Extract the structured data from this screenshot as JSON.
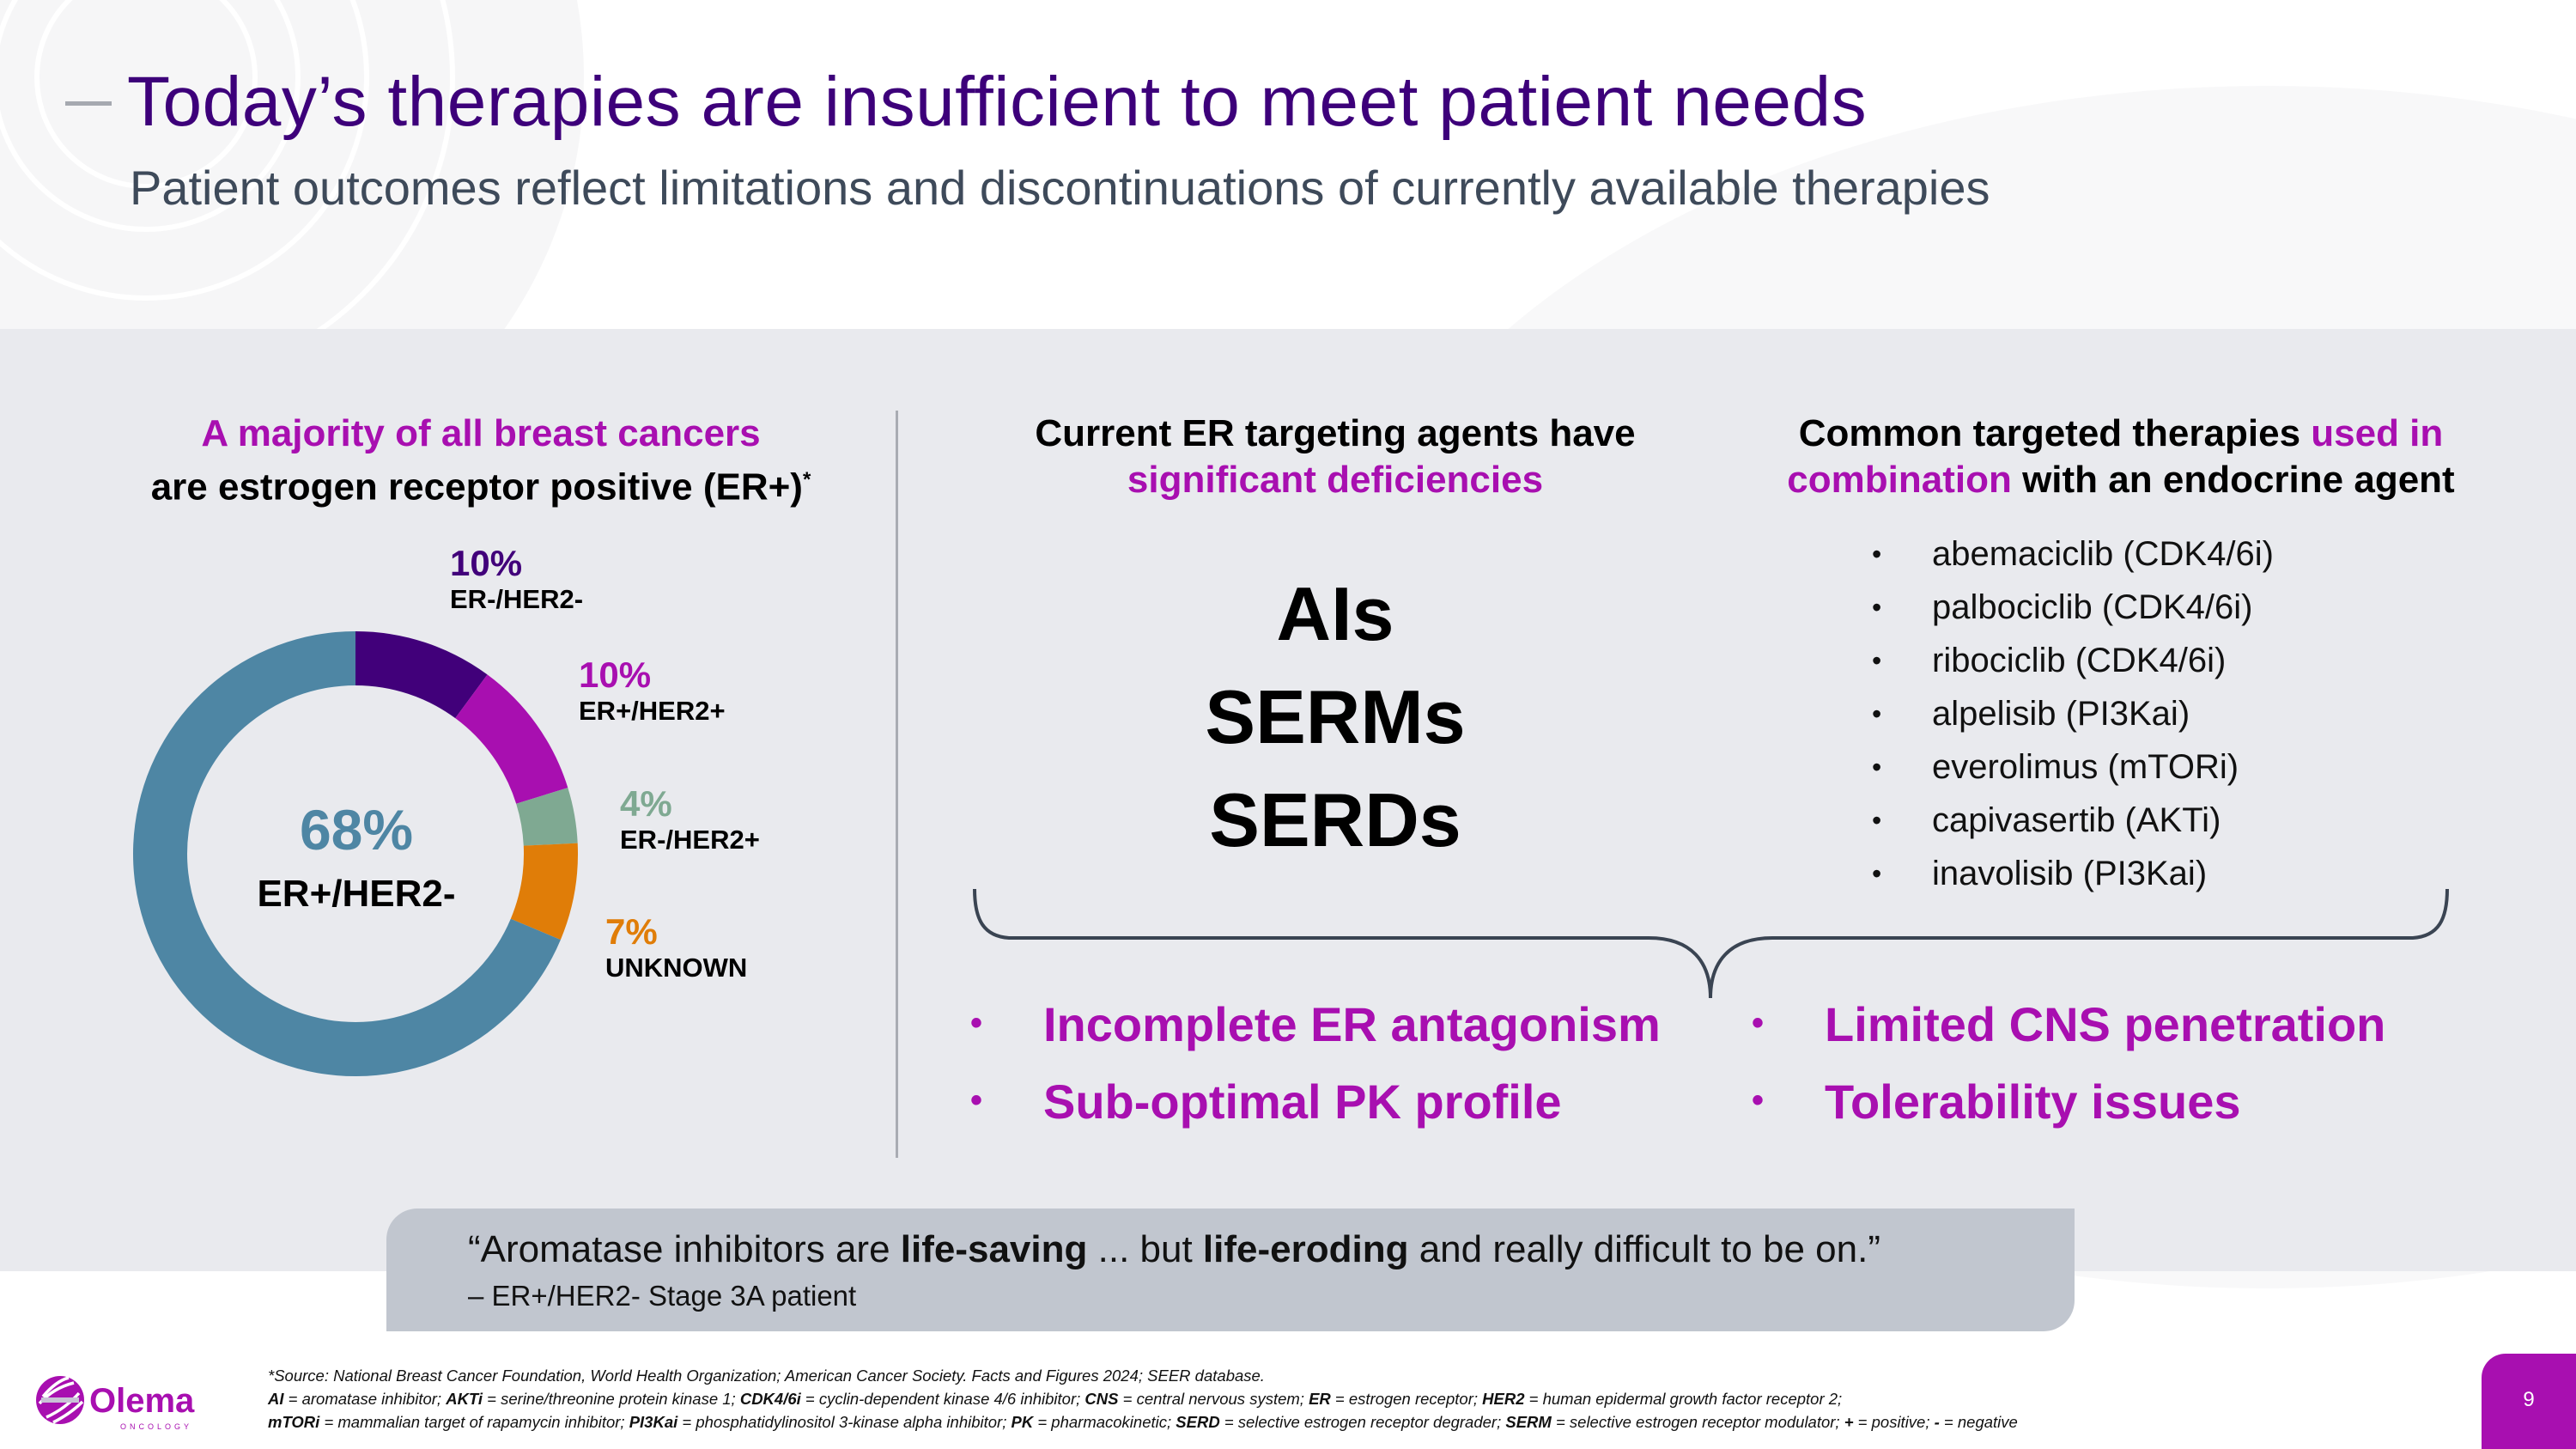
{
  "header": {
    "title": "Today’s therapies are insufficient to meet patient needs",
    "subtitle": "Patient outcomes reflect limitations and discontinuations of currently available therapies"
  },
  "left": {
    "heading_highlight": "A majority of all breast cancers",
    "heading_rest": "are estrogen receptor positive (ER+)",
    "heading_footnote_mark": "*",
    "center_pct": "68%",
    "center_label": "ER+/HER2-"
  },
  "chart_data": {
    "type": "pie",
    "variant": "donut",
    "title": "A majority of all breast cancers are estrogen receptor positive (ER+)*",
    "categories": [
      "ER-/HER2-",
      "ER+/HER2+",
      "ER-/HER2+",
      "UNKNOWN",
      "ER+/HER2-"
    ],
    "values": [
      10,
      10,
      4,
      7,
      68
    ],
    "labels": [
      "10%",
      "10%",
      "4%",
      "7%",
      "68%"
    ],
    "colors": [
      "#41007a",
      "#a80fb0",
      "#7fa992",
      "#e07d08",
      "#4e86a4"
    ],
    "start_angle_deg": 0,
    "direction": "clockwise",
    "center_annotation": "68% ER+/HER2-"
  },
  "middle": {
    "heading_line1": "Current ER targeting agents have",
    "heading_line2": "significant deficiencies",
    "agents": [
      "AIs",
      "SERMs",
      "SERDs"
    ]
  },
  "right": {
    "heading_part1": "Common targeted therapies ",
    "heading_highlight1": "used in",
    "heading_highlight2": "combination",
    "heading_part2": " with an endocrine agent",
    "bullet_glyph": "•",
    "therapies": [
      "abemaciclib (CDK4/6i)",
      "palbociclib (CDK4/6i)",
      "ribociclib (CDK4/6i)",
      "alpelisib (PI3Kai)",
      "everolimus (mTORi)",
      "capivasertib (AKTi)",
      "inavolisib (PI3Kai)"
    ]
  },
  "deficiencies": {
    "bullet_glyph": "•",
    "items": [
      "Incomplete ER antagonism",
      "Sub-optimal PK profile",
      "Limited CNS penetration",
      "Tolerability issues"
    ]
  },
  "quote": {
    "open": "“Aromatase inhibitors are ",
    "bold1": "life-saving",
    "mid": " ... but ",
    "bold2": "life-eroding",
    "close": " and really difficult to be on.”",
    "attribution": "– ER+/HER2- Stage 3A patient"
  },
  "footer": {
    "source": "*Source: National Breast Cancer Foundation, World Health Organization; American Cancer Society. Facts and Figures 2024; SEER database.",
    "abbrev_line1": [
      {
        "term": "AI",
        "def": " = aromatase inhibitor; "
      },
      {
        "term": "AKTi",
        "def": " = serine/threonine protein kinase 1; "
      },
      {
        "term": "CDK4/6i",
        "def": " = cyclin-dependent kinase 4/6 inhibitor; "
      },
      {
        "term": "CNS",
        "def": " = central nervous system; "
      },
      {
        "term": "ER",
        "def": " = estrogen receptor; "
      },
      {
        "term": "HER2",
        "def": " = human epidermal growth factor receptor 2;"
      }
    ],
    "abbrev_line2": [
      {
        "term": "mTORi",
        "def": " = mammalian target of rapamycin inhibitor; "
      },
      {
        "term": "PI3Kai",
        "def": " = phosphatidylinositol 3-kinase alpha inhibitor; "
      },
      {
        "term": "PK",
        "def": " = pharmacokinetic; "
      },
      {
        "term": "SERD",
        "def": " = selective estrogen receptor degrader; "
      },
      {
        "term": "SERM",
        "def": " = selective estrogen receptor modulator; "
      },
      {
        "term": "+",
        "def": " = positive; "
      },
      {
        "term": "-",
        "def": " = negative"
      }
    ],
    "logo_name": "Olema",
    "logo_sub": "ONCOLOGY",
    "page_number": "9"
  },
  "colors": {
    "title_purple": "#3d007a",
    "accent_magenta": "#a80fb0",
    "panel_gray": "#e9eaee",
    "quote_gray": "#c1c6cf",
    "subtitle_slate": "#3e4a5a"
  }
}
